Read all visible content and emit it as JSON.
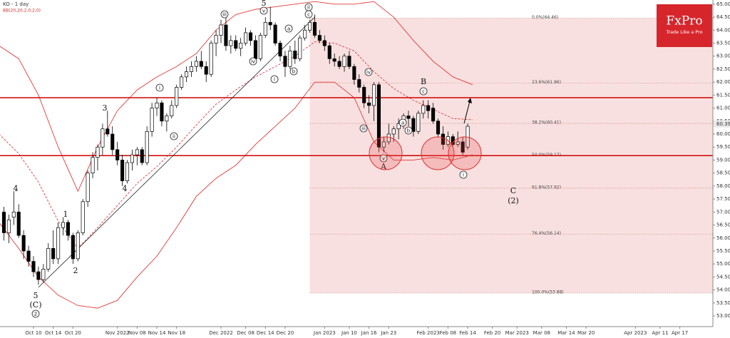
{
  "chart_data": {
    "type": "candlestick",
    "title": "KO - 1 day",
    "subtitle": "BB(20,20,2,0,2,0)",
    "logo": {
      "name": "FxPro",
      "tagline": "Trade Like a Pro"
    },
    "xlim": [
      -6.79,
      137.7
    ],
    "ylim": [
      52.59,
      65.16
    ],
    "yticks": [
      {
        "value": 53,
        "label": "53.00"
      },
      {
        "value": 53.5,
        "label": "53.50"
      },
      {
        "value": 54,
        "label": "54.00"
      },
      {
        "value": 54.5,
        "label": "54.50"
      },
      {
        "value": 55,
        "label": "55.00"
      },
      {
        "value": 55.5,
        "label": "55.50"
      },
      {
        "value": 56,
        "label": "56.00"
      },
      {
        "value": 56.5,
        "label": "56.50"
      },
      {
        "value": 57,
        "label": "57.00"
      },
      {
        "value": 57.5,
        "label": "57.50"
      },
      {
        "value": 58,
        "label": "58.00"
      },
      {
        "value": 58.5,
        "label": "58.50"
      },
      {
        "value": 59,
        "label": "59.00"
      },
      {
        "value": 59.5,
        "label": "59.50"
      },
      {
        "value": 60,
        "label": "60.00"
      },
      {
        "value": 60.5,
        "label": "60.50"
      },
      {
        "value": 61,
        "label": "61.00"
      },
      {
        "value": 61.5,
        "label": "61.50"
      },
      {
        "value": 62,
        "label": "62.00"
      },
      {
        "value": 62.5,
        "label": "62.50"
      },
      {
        "value": 63,
        "label": "63.00"
      },
      {
        "value": 63.5,
        "label": "63.50"
      },
      {
        "value": 64,
        "label": "64.00"
      },
      {
        "value": 64.5,
        "label": "64.50"
      },
      {
        "value": 65,
        "label": "65.00"
      }
    ],
    "xticks": [
      {
        "value": 0,
        "label": "Oct 10"
      },
      {
        "value": 4,
        "label": "Oct 14"
      },
      {
        "value": 8,
        "label": "Oct 20"
      },
      {
        "value": 17,
        "label": "Nov 2022"
      },
      {
        "value": 21,
        "label": "Nov 08"
      },
      {
        "value": 25,
        "label": "Nov 14"
      },
      {
        "value": 29,
        "label": "Nov 18"
      },
      {
        "value": 38,
        "label": "Dec 2022"
      },
      {
        "value": 43,
        "label": "Dec 08"
      },
      {
        "value": 47,
        "label": "Dec 14"
      },
      {
        "value": 51,
        "label": "Dec 20"
      },
      {
        "value": 59,
        "label": "Jan 2023"
      },
      {
        "value": 64,
        "label": "Jan 10"
      },
      {
        "value": 68,
        "label": "Jan 16"
      },
      {
        "value": 72,
        "label": "Jan 23"
      },
      {
        "value": 80,
        "label": "Feb 2023"
      },
      {
        "value": 84,
        "label": "Feb 08"
      },
      {
        "value": 88,
        "label": "Feb 14"
      },
      {
        "value": 93,
        "label": "Feb 20"
      },
      {
        "value": 98,
        "label": "Mar 2023"
      },
      {
        "value": 103,
        "label": "Mar 08"
      },
      {
        "value": 108,
        "label": "Mar 14"
      },
      {
        "value": 112,
        "label": "Mar 20"
      },
      {
        "value": 122,
        "label": "Apr 2023"
      },
      {
        "value": 127,
        "label": "Apr 11"
      },
      {
        "value": 131,
        "label": "Apr 17"
      }
    ],
    "candles": [
      {
        "x": -6,
        "open": 57.0,
        "high": 57.2,
        "low": 55.9,
        "close": 56.2
      },
      {
        "x": -5,
        "open": 56.2,
        "high": 56.9,
        "low": 55.8,
        "close": 56.7
      },
      {
        "x": -4,
        "open": 56.8,
        "high": 57.8,
        "low": 56.5,
        "close": 57.0
      },
      {
        "x": -3,
        "open": 57.0,
        "high": 57.3,
        "low": 56.0,
        "close": 56.1
      },
      {
        "x": -2,
        "open": 56.1,
        "high": 56.3,
        "low": 55.2,
        "close": 55.5
      },
      {
        "x": -1,
        "open": 55.5,
        "high": 55.7,
        "low": 54.9,
        "close": 55.1
      },
      {
        "x": 0,
        "open": 55.1,
        "high": 55.3,
        "low": 54.5,
        "close": 54.7
      },
      {
        "x": 1,
        "open": 54.7,
        "high": 54.9,
        "low": 54.2,
        "close": 54.4
      },
      {
        "x": 2,
        "open": 54.4,
        "high": 55.0,
        "low": 54.3,
        "close": 54.8
      },
      {
        "x": 3,
        "open": 54.8,
        "high": 55.8,
        "low": 54.7,
        "close": 55.6
      },
      {
        "x": 4,
        "open": 55.6,
        "high": 56.3,
        "low": 55.0,
        "close": 55.2
      },
      {
        "x": 5,
        "open": 55.2,
        "high": 56.6,
        "low": 55.0,
        "close": 56.4
      },
      {
        "x": 6,
        "open": 56.4,
        "high": 56.8,
        "low": 56.1,
        "close": 56.6
      },
      {
        "x": 7,
        "open": 56.6,
        "high": 56.7,
        "low": 55.9,
        "close": 56.1
      },
      {
        "x": 8,
        "open": 56.1,
        "high": 56.2,
        "low": 55.0,
        "close": 55.2
      },
      {
        "x": 9,
        "open": 55.2,
        "high": 56.3,
        "low": 55.1,
        "close": 56.2
      },
      {
        "x": 10,
        "open": 56.2,
        "high": 57.5,
        "low": 56.1,
        "close": 57.4
      },
      {
        "x": 11,
        "open": 57.4,
        "high": 58.6,
        "low": 57.2,
        "close": 58.5
      },
      {
        "x": 12,
        "open": 58.5,
        "high": 59.3,
        "low": 58.3,
        "close": 59.1
      },
      {
        "x": 13,
        "open": 59.1,
        "high": 59.6,
        "low": 58.6,
        "close": 59.5
      },
      {
        "x": 14,
        "open": 59.5,
        "high": 60.4,
        "low": 59.2,
        "close": 60.2
      },
      {
        "x": 15,
        "open": 60.2,
        "high": 60.9,
        "low": 59.9,
        "close": 60.0
      },
      {
        "x": 16,
        "open": 60.0,
        "high": 60.3,
        "low": 59.2,
        "close": 59.4
      },
      {
        "x": 17,
        "open": 59.4,
        "high": 59.7,
        "low": 58.8,
        "close": 59.0
      },
      {
        "x": 18,
        "open": 59.0,
        "high": 59.2,
        "low": 58.0,
        "close": 58.2
      },
      {
        "x": 19,
        "open": 58.2,
        "high": 59.0,
        "low": 58.1,
        "close": 58.9
      },
      {
        "x": 20,
        "open": 58.9,
        "high": 59.4,
        "low": 58.6,
        "close": 59.2
      },
      {
        "x": 21,
        "open": 59.2,
        "high": 59.5,
        "low": 58.8,
        "close": 59.4
      },
      {
        "x": 22,
        "open": 59.4,
        "high": 59.5,
        "low": 58.8,
        "close": 58.9
      },
      {
        "x": 23,
        "open": 58.9,
        "high": 60.3,
        "low": 58.8,
        "close": 60.1
      },
      {
        "x": 24,
        "open": 60.1,
        "high": 61.2,
        "low": 59.9,
        "close": 61.0
      },
      {
        "x": 25,
        "open": 61.0,
        "high": 61.4,
        "low": 60.7,
        "close": 61.2
      },
      {
        "x": 26,
        "open": 61.2,
        "high": 61.3,
        "low": 60.3,
        "close": 60.5
      },
      {
        "x": 27,
        "open": 60.5,
        "high": 60.8,
        "low": 60.1,
        "close": 60.7
      },
      {
        "x": 28,
        "open": 60.7,
        "high": 61.3,
        "low": 60.6,
        "close": 61.1
      },
      {
        "x": 29,
        "open": 61.1,
        "high": 61.9,
        "low": 61.0,
        "close": 61.8
      },
      {
        "x": 30,
        "open": 61.8,
        "high": 62.3,
        "low": 61.7,
        "close": 62.2
      },
      {
        "x": 31,
        "open": 62.2,
        "high": 62.6,
        "low": 62.0,
        "close": 62.4
      },
      {
        "x": 32,
        "open": 62.4,
        "high": 62.8,
        "low": 62.2,
        "close": 62.6
      },
      {
        "x": 33,
        "open": 62.6,
        "high": 63.0,
        "low": 62.4,
        "close": 62.8
      },
      {
        "x": 34,
        "open": 62.8,
        "high": 63.2,
        "low": 62.5,
        "close": 62.6
      },
      {
        "x": 35,
        "open": 62.6,
        "high": 62.8,
        "low": 62.0,
        "close": 62.3
      },
      {
        "x": 36,
        "open": 62.3,
        "high": 63.6,
        "low": 62.2,
        "close": 63.5
      },
      {
        "x": 37,
        "open": 63.5,
        "high": 64.0,
        "low": 63.0,
        "close": 63.8
      },
      {
        "x": 38,
        "open": 63.8,
        "high": 64.4,
        "low": 63.5,
        "close": 64.2
      },
      {
        "x": 39,
        "open": 64.2,
        "high": 64.5,
        "low": 63.2,
        "close": 63.4
      },
      {
        "x": 40,
        "open": 63.4,
        "high": 63.8,
        "low": 63.1,
        "close": 63.6
      },
      {
        "x": 41,
        "open": 63.6,
        "high": 63.8,
        "low": 63.2,
        "close": 63.3
      },
      {
        "x": 42,
        "open": 63.3,
        "high": 63.7,
        "low": 63.0,
        "close": 63.5
      },
      {
        "x": 43,
        "open": 63.5,
        "high": 64.1,
        "low": 63.4,
        "close": 63.9
      },
      {
        "x": 44,
        "open": 63.9,
        "high": 64.0,
        "low": 63.4,
        "close": 63.6
      },
      {
        "x": 45,
        "open": 63.6,
        "high": 63.8,
        "low": 62.7,
        "close": 62.9
      },
      {
        "x": 46,
        "open": 62.9,
        "high": 63.9,
        "low": 62.8,
        "close": 63.8
      },
      {
        "x": 47,
        "open": 63.8,
        "high": 64.5,
        "low": 63.7,
        "close": 64.3
      },
      {
        "x": 48,
        "open": 64.3,
        "high": 64.9,
        "low": 64.0,
        "close": 64.2
      },
      {
        "x": 49,
        "open": 64.2,
        "high": 64.3,
        "low": 63.4,
        "close": 63.5
      },
      {
        "x": 50,
        "open": 63.5,
        "high": 63.6,
        "low": 62.8,
        "close": 63.0
      },
      {
        "x": 51,
        "open": 63.0,
        "high": 63.2,
        "low": 62.2,
        "close": 62.6
      },
      {
        "x": 52,
        "open": 62.6,
        "high": 63.4,
        "low": 62.5,
        "close": 63.2
      },
      {
        "x": 53,
        "open": 63.2,
        "high": 63.6,
        "low": 62.7,
        "close": 62.9
      },
      {
        "x": 54,
        "open": 62.9,
        "high": 63.8,
        "low": 62.8,
        "close": 63.7
      },
      {
        "x": 55,
        "open": 63.7,
        "high": 64.2,
        "low": 63.6,
        "close": 64.0
      },
      {
        "x": 56,
        "open": 64.0,
        "high": 64.4,
        "low": 63.9,
        "close": 64.3
      },
      {
        "x": 57,
        "open": 64.3,
        "high": 64.6,
        "low": 63.7,
        "close": 63.8
      },
      {
        "x": 58,
        "open": 63.8,
        "high": 64.0,
        "low": 63.5,
        "close": 63.6
      },
      {
        "x": 59,
        "open": 63.6,
        "high": 63.8,
        "low": 63.2,
        "close": 63.4
      },
      {
        "x": 60,
        "open": 63.4,
        "high": 63.5,
        "low": 62.7,
        "close": 62.9
      },
      {
        "x": 61,
        "open": 62.9,
        "high": 63.1,
        "low": 62.6,
        "close": 62.8
      },
      {
        "x": 62,
        "open": 62.8,
        "high": 63.0,
        "low": 62.5,
        "close": 62.6
      },
      {
        "x": 63,
        "open": 62.6,
        "high": 63.1,
        "low": 62.4,
        "close": 63.0
      },
      {
        "x": 64,
        "open": 63.0,
        "high": 63.2,
        "low": 62.5,
        "close": 62.6
      },
      {
        "x": 65,
        "open": 62.6,
        "high": 62.7,
        "low": 61.9,
        "close": 62.1
      },
      {
        "x": 66,
        "open": 62.1,
        "high": 62.3,
        "low": 61.6,
        "close": 61.8
      },
      {
        "x": 67,
        "open": 61.8,
        "high": 61.9,
        "low": 61.0,
        "close": 61.2
      },
      {
        "x": 68,
        "open": 61.2,
        "high": 61.5,
        "low": 60.8,
        "close": 61.1
      },
      {
        "x": 69,
        "open": 61.1,
        "high": 62.0,
        "low": 60.5,
        "close": 61.9
      },
      {
        "x": 70,
        "open": 61.9,
        "high": 62.0,
        "low": 59.3,
        "close": 59.5
      },
      {
        "x": 71,
        "open": 59.5,
        "high": 59.9,
        "low": 59.3,
        "close": 59.7
      },
      {
        "x": 72,
        "open": 59.7,
        "high": 60.4,
        "low": 59.6,
        "close": 60.0
      },
      {
        "x": 73,
        "open": 60.0,
        "high": 60.3,
        "low": 59.7,
        "close": 60.2
      },
      {
        "x": 74,
        "open": 60.2,
        "high": 60.6,
        "low": 59.8,
        "close": 60.4
      },
      {
        "x": 75,
        "open": 60.4,
        "high": 60.8,
        "low": 60.2,
        "close": 60.7
      },
      {
        "x": 76,
        "open": 60.7,
        "high": 60.9,
        "low": 60.3,
        "close": 60.6
      },
      {
        "x": 77,
        "open": 60.6,
        "high": 60.7,
        "low": 59.9,
        "close": 60.1
      },
      {
        "x": 78,
        "open": 60.1,
        "high": 60.9,
        "low": 60.0,
        "close": 60.8
      },
      {
        "x": 79,
        "open": 60.8,
        "high": 61.3,
        "low": 60.6,
        "close": 61.1
      },
      {
        "x": 80,
        "open": 61.1,
        "high": 61.3,
        "low": 60.6,
        "close": 60.9
      },
      {
        "x": 81,
        "open": 61.0,
        "high": 61.2,
        "low": 60.4,
        "close": 60.5
      },
      {
        "x": 82,
        "open": 60.5,
        "high": 60.6,
        "low": 59.9,
        "close": 60.0
      },
      {
        "x": 83,
        "open": 60.0,
        "high": 60.3,
        "low": 59.4,
        "close": 59.6
      },
      {
        "x": 84,
        "open": 59.6,
        "high": 60.1,
        "low": 59.5,
        "close": 59.9
      },
      {
        "x": 85,
        "open": 59.9,
        "high": 60.0,
        "low": 59.5,
        "close": 59.6
      },
      {
        "x": 86,
        "open": 59.6,
        "high": 60.1,
        "low": 59.5,
        "close": 59.7
      },
      {
        "x": 87,
        "open": 59.7,
        "high": 59.9,
        "low": 59.2,
        "close": 59.3
      },
      {
        "x": 88,
        "open": 59.5,
        "high": 60.4,
        "low": 59.4,
        "close": 60.3
      }
    ],
    "up_color": "#ffffff",
    "down_color": "#000000",
    "bands": {
      "color": "#e03a3a",
      "x": [
        -7,
        -3,
        1,
        5,
        9,
        13,
        17,
        21,
        25,
        29,
        33,
        37,
        41,
        45,
        49,
        53,
        57,
        61,
        65,
        69,
        73,
        77,
        81,
        85,
        89
      ],
      "upper": [
        63.4,
        62.9,
        61.5,
        59.5,
        57.8,
        59.5,
        60.9,
        61.7,
        62.2,
        62.6,
        63.1,
        64.0,
        64.6,
        64.8,
        64.9,
        65.0,
        65.1,
        65.0,
        65.0,
        65.1,
        64.5,
        63.6,
        62.8,
        62.2,
        61.9
      ],
      "middle": [
        60.0,
        59.25,
        58.15,
        56.65,
        55.6,
        56.4,
        57.25,
        58.1,
        58.75,
        59.5,
        60.35,
        61.15,
        61.7,
        62.2,
        62.6,
        63.0,
        63.55,
        63.5,
        63.2,
        62.4,
        61.75,
        61.3,
        60.95,
        60.6,
        60.55
      ],
      "lower": [
        56.6,
        55.6,
        54.5,
        53.8,
        53.4,
        53.3,
        53.6,
        54.5,
        55.3,
        56.4,
        57.6,
        58.3,
        58.8,
        59.6,
        60.3,
        61.0,
        62.0,
        62.0,
        61.4,
        59.7,
        59.0,
        59.0,
        59.1,
        59.0,
        59.2
      ]
    },
    "fib": {
      "x_start": 56,
      "color": "#f5d5d5",
      "levels": [
        {
          "value": 64.46,
          "label": "0.0%(64.46)"
        },
        {
          "value": 61.96,
          "label": "23.6%(61.96)"
        },
        {
          "value": 60.41,
          "label": "38.2%(60.41)"
        },
        {
          "value": 59.17,
          "label": "50.0%(59.17)"
        },
        {
          "value": 57.92,
          "label": "61.8%(57.92)"
        },
        {
          "value": 56.14,
          "label": "76.4%(56.14)"
        },
        {
          "value": 53.88,
          "label": "100.0%(53.88)"
        }
      ]
    },
    "hlines": [
      61.4,
      59.17
    ],
    "hline_color": "#d00000",
    "trendline": {
      "x": [
        1,
        57
      ],
      "y": [
        54.1,
        64.5
      ]
    },
    "last_price": {
      "value": 60.39,
      "label": "60.39"
    },
    "annotations": [
      {
        "text": "5",
        "circled": false
      },
      {
        "text": "iii",
        "circled": true
      },
      {
        "text": "v",
        "circled": true
      },
      {
        "text": "iv",
        "circled": true
      },
      {
        "text": "ii",
        "circled": true
      },
      {
        "text": "c",
        "circled": true
      },
      {
        "text": "a",
        "circled": true
      },
      {
        "text": "b",
        "circled": true
      },
      {
        "text": "i",
        "circled": true
      },
      {
        "text": "i",
        "circled": true
      },
      {
        "text": "ii",
        "circled": true
      },
      {
        "text": "3",
        "circled": false
      },
      {
        "text": "4",
        "circled": false
      },
      {
        "text": "4",
        "circled": false
      },
      {
        "text": "1",
        "circled": false
      },
      {
        "text": "2",
        "circled": false
      },
      {
        "text": "5",
        "circled": false
      },
      {
        "text": "(C)",
        "circled": false
      },
      {
        "text": "2",
        "circled": true
      },
      {
        "text": "iv",
        "circled": true
      },
      {
        "text": "iii",
        "circled": true
      },
      {
        "text": "v",
        "circled": true
      },
      {
        "text": "A",
        "circled": false
      },
      {
        "text": "a",
        "circled": true
      },
      {
        "text": "b",
        "circled": true
      },
      {
        "text": "B",
        "circled": false
      },
      {
        "text": "c",
        "circled": true
      },
      {
        "text": "i",
        "circled": true
      },
      {
        "text": "C",
        "circled": false
      },
      {
        "text": "(2)",
        "circled": false
      }
    ]
  }
}
